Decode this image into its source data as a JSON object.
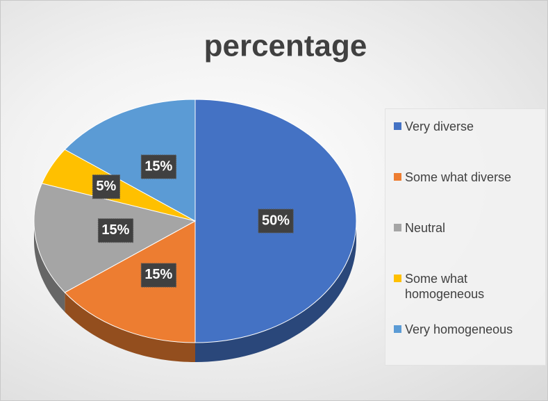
{
  "chart_data": {
    "type": "pie",
    "title": "percentage",
    "categories": [
      "Very diverse",
      "Some what diverse",
      "Neutral",
      "Some what homogeneous",
      "Very homogeneous"
    ],
    "values": [
      50,
      15,
      15,
      5,
      15
    ],
    "value_labels": [
      "50%",
      "15%",
      "15%",
      "5%",
      "15%"
    ],
    "colors": [
      "#4472c4",
      "#ed7d31",
      "#a5a5a5",
      "#ffc000",
      "#5b9bd5"
    ],
    "legend": "right"
  }
}
